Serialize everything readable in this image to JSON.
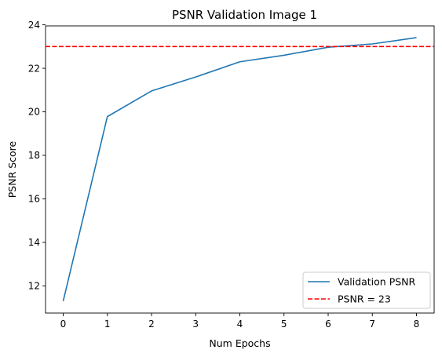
{
  "chart_data": {
    "type": "line",
    "title": "PSNR Validation Image 1",
    "xlabel": "Num Epochs",
    "ylabel": "PSNR Score",
    "xlim": [
      -0.4,
      8.4
    ],
    "ylim": [
      10.75,
      23.95
    ],
    "x_ticks": [
      0,
      1,
      2,
      3,
      4,
      5,
      6,
      7,
      8
    ],
    "y_ticks": [
      12,
      14,
      16,
      18,
      20,
      22,
      24
    ],
    "grid": false,
    "legend_position": "bottom-right",
    "series": [
      {
        "name": "Validation PSNR",
        "color": "#1f77b4",
        "style": "solid",
        "x": [
          0,
          1,
          2,
          3,
          4,
          5,
          6,
          7,
          8
        ],
        "values": [
          11.3,
          19.78,
          20.96,
          21.6,
          22.3,
          22.6,
          22.97,
          23.12,
          23.41
        ]
      }
    ],
    "reference_lines": [
      {
        "name": "PSNR = 23",
        "color": "#ff0000",
        "style": "dashed",
        "y": 23
      }
    ]
  }
}
